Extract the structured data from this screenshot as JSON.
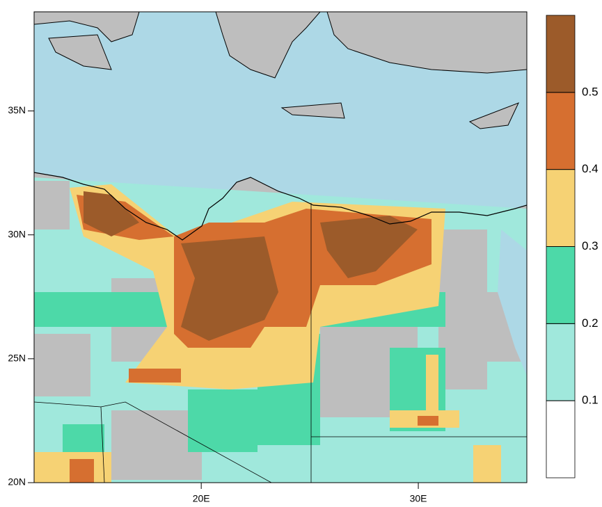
{
  "map": {
    "xlim": [
      12.3,
      35
    ],
    "ylim": [
      20,
      39
    ],
    "xticks": [
      {
        "value": 20,
        "label": "20E"
      },
      {
        "value": 30,
        "label": "30E"
      }
    ],
    "yticks": [
      {
        "value": 20,
        "label": "20N"
      },
      {
        "value": 25,
        "label": "25N"
      },
      {
        "value": 30,
        "label": "30N"
      },
      {
        "value": 35,
        "label": "35N"
      }
    ],
    "sea_color": "#add8e6",
    "land_color": "#bebebe",
    "colorbar": {
      "levels": [
        0.1,
        0.2,
        0.3,
        0.4,
        0.5
      ],
      "colors": [
        "#ffffff",
        "#a0e8dc",
        "#4dd9a8",
        "#f6d274",
        "#d66f30",
        "#9c5b2a"
      ]
    }
  }
}
